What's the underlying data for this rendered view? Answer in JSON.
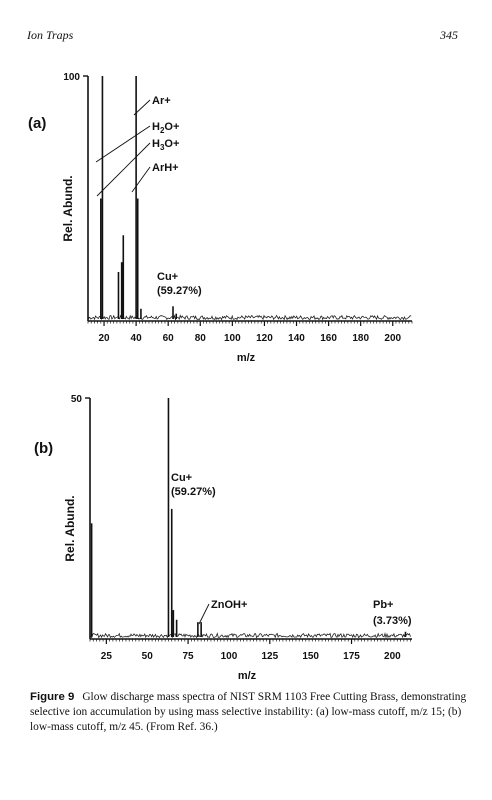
{
  "page": {
    "running_head": "Ion Traps",
    "page_number": "345"
  },
  "caption": {
    "label": "Figure 9",
    "text": "Glow discharge mass spectra of NIST SRM 1103 Free Cutting Brass, demonstrating selective ion accumulation by using mass selective instability: (a) low-mass cutoff, m/z 15; (b) low-mass cutoff, m/z 45. (From Ref. 36.)"
  },
  "chart_data": [
    {
      "type": "line",
      "panel_label": "(a)",
      "xlabel": "m/z",
      "ylabel": "Rel. Abund.",
      "xlim": [
        10,
        212
      ],
      "ylim": [
        0,
        100
      ],
      "x_ticks": [
        20,
        40,
        60,
        80,
        100,
        120,
        140,
        160,
        180,
        200
      ],
      "y_tick_labels": [
        "100"
      ],
      "peaks": [
        {
          "x": 18,
          "y": 50
        },
        {
          "x": 19,
          "y": 100
        },
        {
          "x": 29,
          "y": 20
        },
        {
          "x": 31,
          "y": 24
        },
        {
          "x": 32,
          "y": 35
        },
        {
          "x": 40,
          "y": 100
        },
        {
          "x": 41,
          "y": 50
        },
        {
          "x": 43,
          "y": 5
        },
        {
          "x": 63,
          "y": 6
        },
        {
          "x": 65,
          "y": 3
        }
      ],
      "annotations": [
        {
          "text": "Ar+",
          "x": 40
        },
        {
          "text": "H2O+",
          "x": 18
        },
        {
          "text": "H3O+",
          "x": 19
        },
        {
          "text": "ArH+",
          "x": 41
        },
        {
          "text": "Cu+",
          "x": 63
        },
        {
          "text": "(59.27%)",
          "x": 63
        }
      ]
    },
    {
      "type": "line",
      "panel_label": "(b)",
      "xlabel": "m/z",
      "ylabel": "Rel. Abund.",
      "xlim": [
        15,
        212
      ],
      "ylim": [
        0,
        50
      ],
      "x_ticks": [
        25,
        50,
        75,
        100,
        125,
        150,
        175,
        200
      ],
      "y_tick_labels": [
        "50"
      ],
      "peaks": [
        {
          "x": 16,
          "y": 24
        },
        {
          "x": 63,
          "y": 50
        },
        {
          "x": 65,
          "y": 27
        },
        {
          "x": 66,
          "y": 6
        },
        {
          "x": 68,
          "y": 4
        },
        {
          "x": 81,
          "y": 3.5
        },
        {
          "x": 83,
          "y": 3.5
        },
        {
          "x": 208,
          "y": 1.5
        }
      ],
      "annotations": [
        {
          "text": "Cu+",
          "x": 63
        },
        {
          "text": "(59.27%)",
          "x": 63
        },
        {
          "text": "ZnOH+",
          "x": 82
        },
        {
          "text": "Pb+",
          "x": 208
        },
        {
          "text": "(3.73%)",
          "x": 208
        }
      ]
    }
  ]
}
